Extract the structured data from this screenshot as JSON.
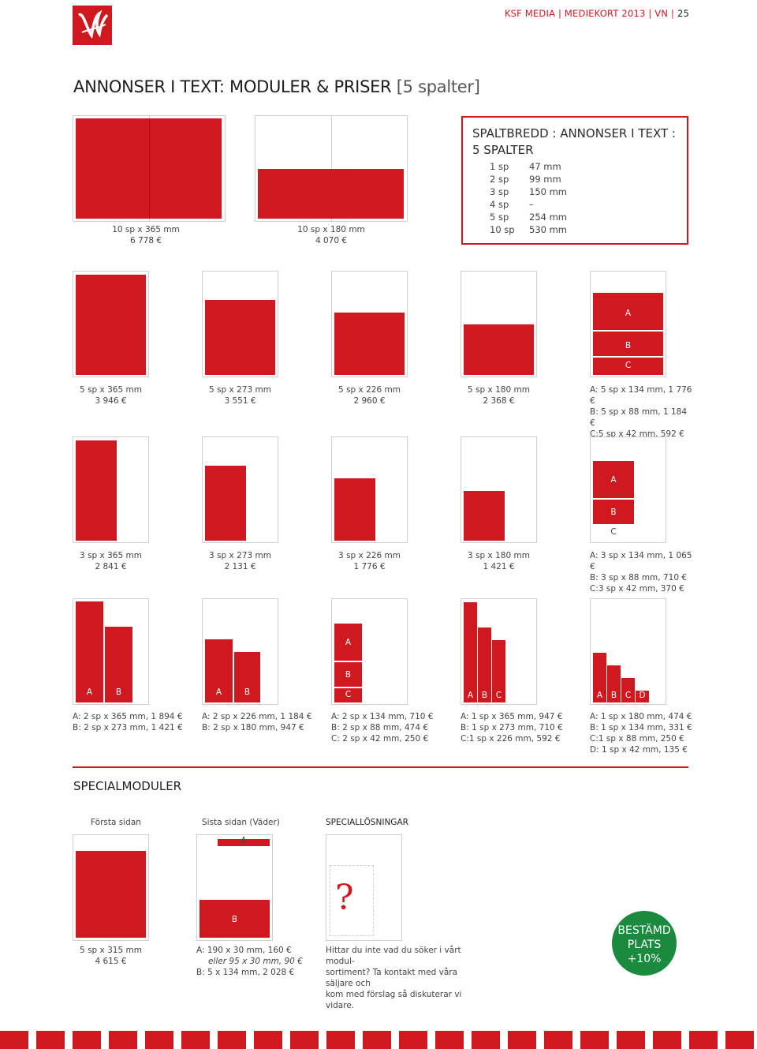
{
  "header": {
    "text": "KSF MEDIA | MEDIEKORT 2013 | VN |",
    "page": "25"
  },
  "title": {
    "main": "ANNONSER I TEXT: MODULER & PRISER",
    "bracket": "[5 spalter]"
  },
  "spaltbredd": {
    "title_line1": "SPALTBREDD : ANNONSER I TEXT :",
    "title_line2": "5 SPALTER",
    "rows": [
      {
        "sp": "1 sp",
        "mm": "47 mm"
      },
      {
        "sp": "2 sp",
        "mm": "99 mm"
      },
      {
        "sp": "3 sp",
        "mm": "150 mm"
      },
      {
        "sp": "4 sp",
        "mm": "–"
      },
      {
        "sp": "5 sp",
        "mm": "254 mm"
      },
      {
        "sp": "10 sp",
        "mm": "530 mm"
      }
    ]
  },
  "row1": [
    {
      "label": "10 sp x 365 mm\n6 778 €"
    },
    {
      "label": "10 sp x 180 mm\n4 070 €"
    }
  ],
  "row2": [
    {
      "label": "5 sp x 365 mm\n3 946 €"
    },
    {
      "label": "5 sp x 273 mm\n3 551 €"
    },
    {
      "label": "5 sp x 226 mm\n2 960 €"
    },
    {
      "label": "5 sp x 180 mm\n2 368 €"
    },
    {
      "label": "A: 5 sp x 134 mm, 1 776 €\nB: 5 sp x 88 mm, 1 184 €\nC:5 sp x 42 mm, 592 €"
    }
  ],
  "row3": [
    {
      "label": "3 sp x 365 mm\n2 841 €"
    },
    {
      "label": "3 sp x 273 mm\n2 131 €"
    },
    {
      "label": "3 sp x 226 mm\n1 776 €"
    },
    {
      "label": "3 sp x 180 mm\n1 421 €"
    },
    {
      "label": "A: 3 sp x 134 mm, 1 065 €\nB: 3 sp x 88 mm, 710 €\nC:3 sp x 42 mm, 370 €"
    }
  ],
  "row4": [
    {
      "label": "A: 2 sp x 365 mm, 1 894 €\nB: 2 sp x 273 mm, 1 421 €"
    },
    {
      "label": "A: 2 sp x 226 mm, 1 184 €\nB: 2 sp x 180 mm, 947 €"
    },
    {
      "label": "A: 2 sp x 134 mm, 710 €\nB: 2 sp x 88 mm, 474 €\nC: 2 sp x 42 mm, 250  €"
    },
    {
      "label": "A: 1 sp x 365 mm, 947 €\nB: 1 sp x 273 mm, 710 €\nC:1 sp x 226 mm, 592 €"
    },
    {
      "label": "A: 1 sp x 180 mm, 474 €\nB: 1 sp x 134 mm, 331 €\nC:1 sp x 88 mm, 250 €\nD: 1 sp x 42 mm, 135 €"
    }
  ],
  "letters": {
    "a": "A",
    "b": "B",
    "c": "C",
    "d": "D"
  },
  "special": {
    "heading": "SPECIALMODULER",
    "forsta": "Första sidan",
    "sista": "Sista sidan (Väder)",
    "losningar": "SPECIALLÖSNINGAR",
    "forsta_label": "5 sp x 315 mm\n4 615 €",
    "sista_a": "A:  190 x 30 mm, 160 €",
    "sista_eller": "eller 95 x 30 mm, 90 €",
    "sista_b": "B:  5 x 134 mm, 2 028 €",
    "question": "?",
    "text": "Hittar du inte vad du söker i vårt modul-\nsortiment? Ta kontakt med våra säljare och\nkom med förslag så diskuterar vi vidare."
  },
  "badge": {
    "line1": "BESTÄMD",
    "line2": "PLATS",
    "line3": "+10%"
  },
  "colors": {
    "red": "#d0191f",
    "green": "#1a8a3e"
  }
}
